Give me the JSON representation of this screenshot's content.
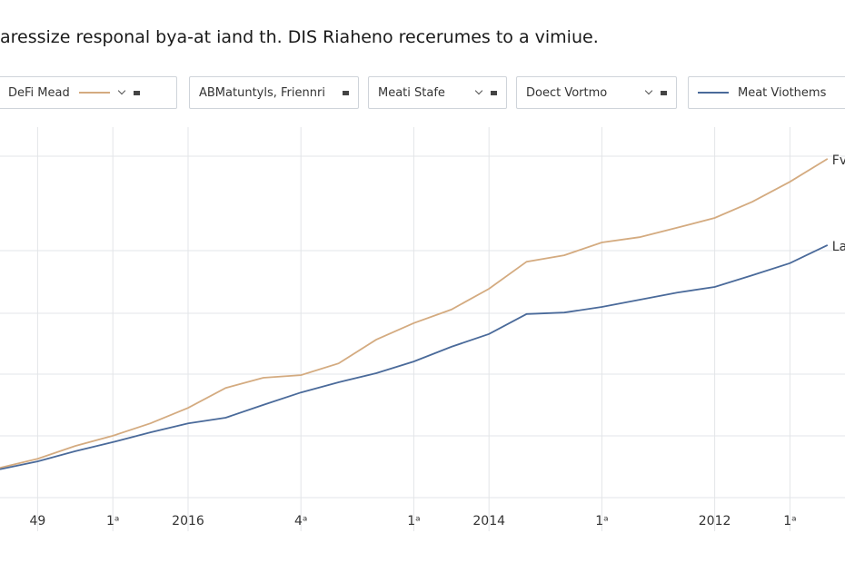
{
  "header": {
    "title": "aressize responal bya-at iand th. DIS Riaheno recerumes to a vimiue.",
    "controls": [
      "DeFi Mead",
      "ABMatuntyls, Friennri",
      "Meati Stafe",
      "Doect Vortmo",
      "Meat Viothems"
    ]
  },
  "chart_data": {
    "type": "line",
    "categories": [
      null,
      "49",
      null,
      "1ᵃ",
      null,
      "2016",
      null,
      null,
      "4ᵃ",
      null,
      null,
      "1ᵃ",
      null,
      "2014",
      null,
      null,
      "1ᵃ",
      null,
      null,
      "2012",
      null,
      "1ᵃ",
      null
    ],
    "series": [
      {
        "name": "Fv",
        "color": "#d4ab80",
        "values": [
          9.6,
          12.0,
          15.4,
          18.1,
          21.4,
          25.5,
          30.8,
          33.5,
          34.2,
          37.3,
          43.6,
          48.0,
          51.6,
          57.1,
          64.3,
          66.0,
          69.4,
          70.8,
          73.3,
          75.9,
          80.2,
          85.5,
          91.6
        ]
      },
      {
        "name": "La",
        "color": "#4a6a9a",
        "values": [
          9.2,
          11.3,
          14.0,
          16.4,
          19.0,
          21.4,
          22.9,
          26.3,
          29.6,
          32.3,
          34.7,
          37.8,
          41.7,
          45.1,
          50.4,
          50.8,
          52.3,
          54.2,
          56.1,
          57.6,
          60.7,
          63.9,
          68.7
        ]
      }
    ],
    "ylim": [
      0,
      100
    ],
    "grid": true
  }
}
